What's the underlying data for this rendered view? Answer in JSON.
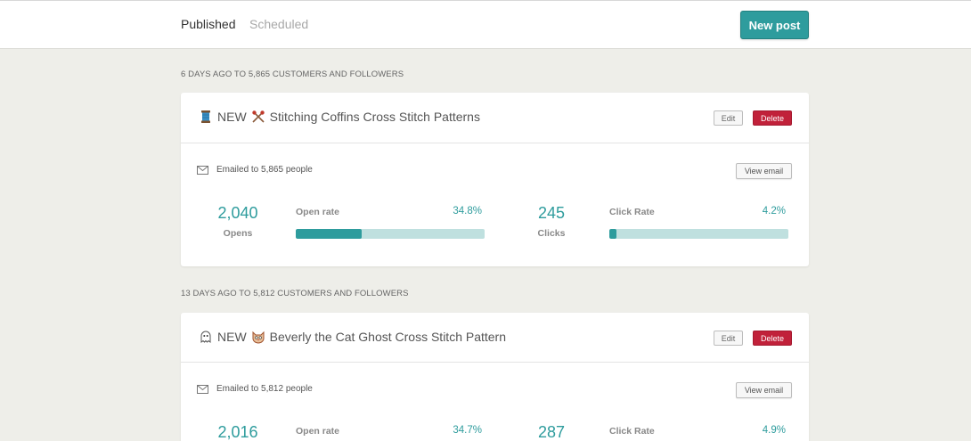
{
  "tabs": [
    {
      "label": "Published",
      "active": true
    },
    {
      "label": "Scheduled",
      "active": false
    }
  ],
  "new_post_label": "New post",
  "posts": [
    {
      "section_label": "6 DAYS AGO TO 5,865 CUSTOMERS AND FOLLOWERS",
      "title_prefix": "NEW",
      "title_text": "Stitching Coffins Cross Stitch Patterns",
      "emoji_left": "spool-of-thread-icon",
      "emoji_right": "crossed-needles-icon",
      "edit_label": "Edit",
      "delete_label": "Delete",
      "emailed_text": "Emailed to 5,865 people",
      "view_email_label": "View email",
      "opens_value": "2,040",
      "opens_label": "Opens",
      "open_rate_label": "Open rate",
      "open_rate_value": "34.8%",
      "open_rate_fraction": 0.348,
      "clicks_value": "245",
      "clicks_label": "Clicks",
      "click_rate_label": "Click Rate",
      "click_rate_value": "4.2%",
      "click_rate_fraction": 0.042
    },
    {
      "section_label": "13 DAYS AGO TO 5,812 CUSTOMERS AND FOLLOWERS",
      "title_prefix": "NEW",
      "title_text": "Beverly the Cat Ghost Cross Stitch Pattern",
      "emoji_left": "ghost-icon",
      "emoji_right": "cat-face-icon",
      "edit_label": "Edit",
      "delete_label": "Delete",
      "emailed_text": "Emailed to 5,812 people",
      "view_email_label": "View email",
      "opens_value": "2,016",
      "open_rate_label": "Open rate",
      "open_rate_value": "34.7%",
      "clicks_value": "287",
      "click_rate_label": "Click Rate",
      "click_rate_value": "4.9%"
    }
  ],
  "colors": {
    "accent": "#2e9c9d",
    "bar_track": "#bfe0df",
    "delete": "#c1213a",
    "background": "#eeeee9"
  }
}
